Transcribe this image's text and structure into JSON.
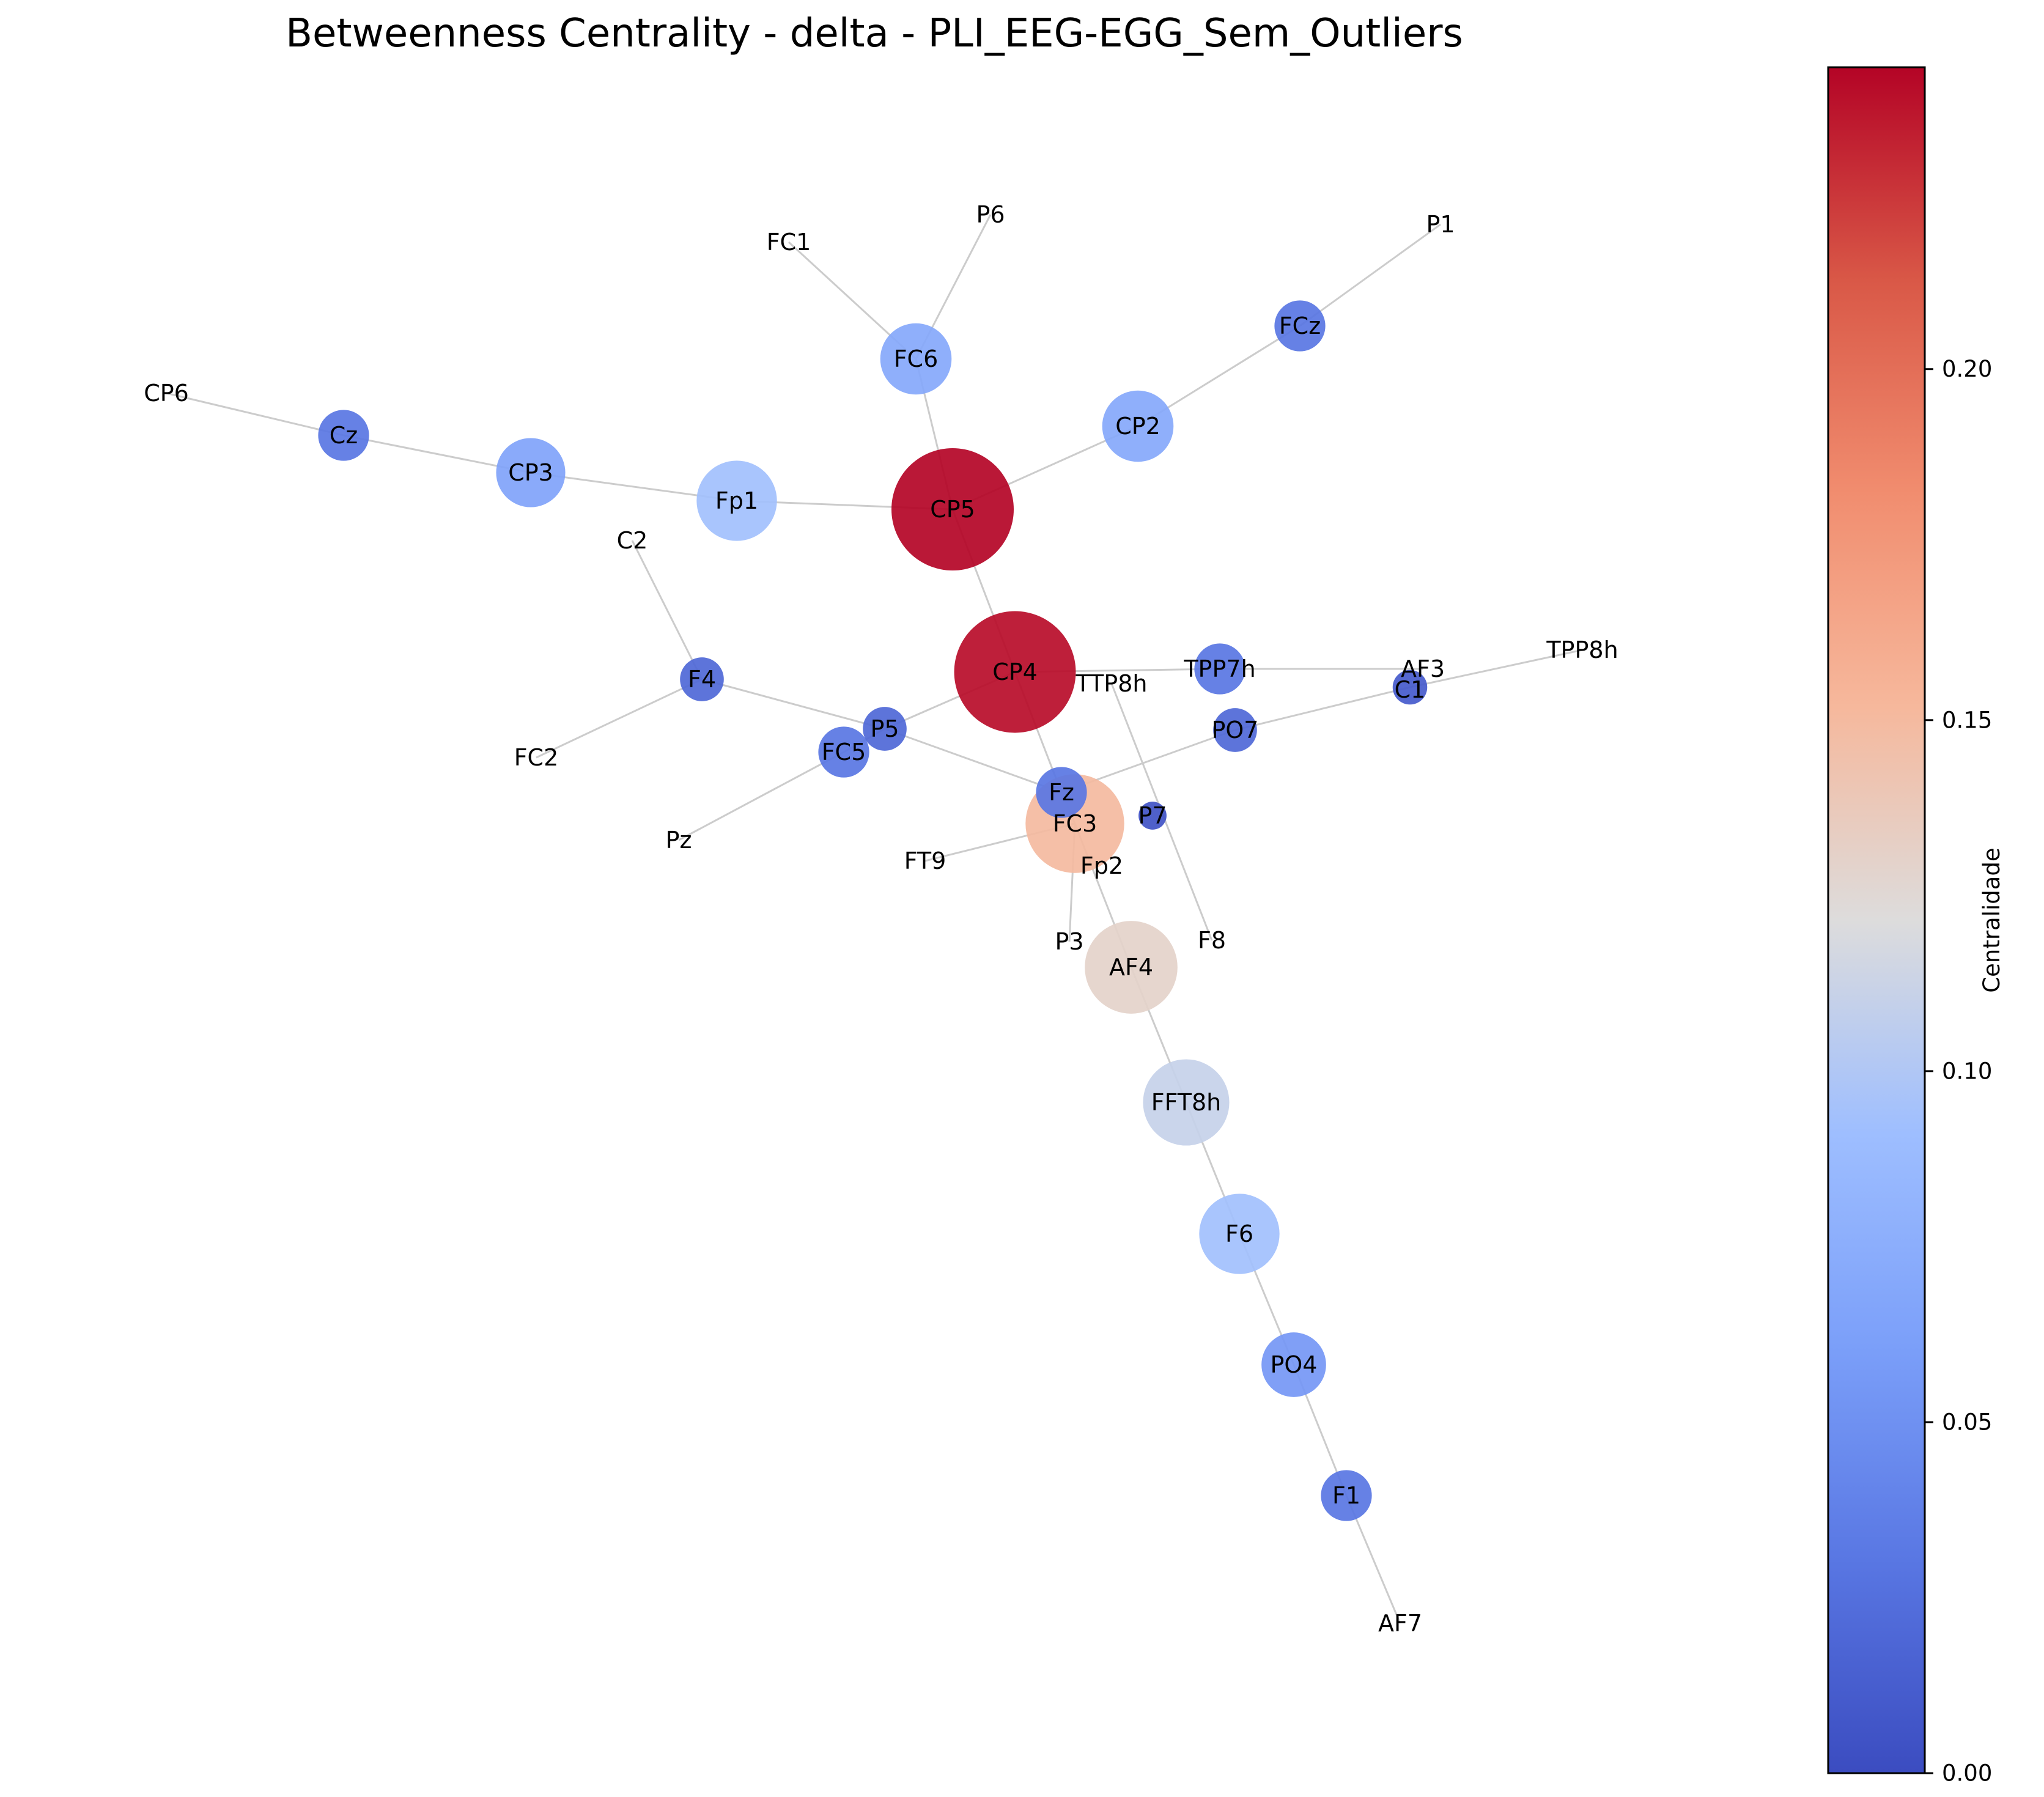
{
  "title": "Betweenness Centrality - delta - PLI_EEG-EGG_Sem_Outliers",
  "colorbar": {
    "label": "Centralidade",
    "ticks": [
      "0.00",
      "0.05",
      "0.10",
      "0.15",
      "0.20"
    ],
    "tick_values": [
      0.0,
      0.05,
      0.1,
      0.15,
      0.2
    ],
    "range": [
      0.0,
      0.243
    ],
    "colormap": "coolwarm",
    "edge_color": "#cccccc"
  },
  "nodes": [
    {
      "id": "CP5",
      "value": 0.243
    },
    {
      "id": "CP4",
      "value": 0.24
    },
    {
      "id": "FC3",
      "value": 0.15
    },
    {
      "id": "AF4",
      "value": 0.13
    },
    {
      "id": "FFT8h",
      "value": 0.11
    },
    {
      "id": "F6",
      "value": 0.093
    },
    {
      "id": "Fp1",
      "value": 0.093
    },
    {
      "id": "FC6",
      "value": 0.07
    },
    {
      "id": "CP2",
      "value": 0.07
    },
    {
      "id": "CP3",
      "value": 0.065
    },
    {
      "id": "PO4",
      "value": 0.055
    },
    {
      "id": "Cz",
      "value": 0.03
    },
    {
      "id": "FCz",
      "value": 0.03
    },
    {
      "id": "F1",
      "value": 0.03
    },
    {
      "id": "TPP7h",
      "value": 0.03
    },
    {
      "id": "Fz",
      "value": 0.03
    },
    {
      "id": "FC5",
      "value": 0.03
    },
    {
      "id": "P5",
      "value": 0.02
    },
    {
      "id": "F4",
      "value": 0.02
    },
    {
      "id": "PO7",
      "value": 0.02
    },
    {
      "id": "C1",
      "value": 0.01
    },
    {
      "id": "P7",
      "value": 0.005
    },
    {
      "id": "CP6",
      "value": 0.0
    },
    {
      "id": "FC1",
      "value": 0.0
    },
    {
      "id": "P6",
      "value": 0.0
    },
    {
      "id": "P1",
      "value": 0.0
    },
    {
      "id": "C2",
      "value": 0.0
    },
    {
      "id": "FC2",
      "value": 0.0
    },
    {
      "id": "Pz",
      "value": 0.0
    },
    {
      "id": "FT9",
      "value": 0.0
    },
    {
      "id": "Fp2",
      "value": 0.0
    },
    {
      "id": "P3",
      "value": 0.0
    },
    {
      "id": "F8",
      "value": 0.0
    },
    {
      "id": "TTP8h",
      "value": 0.0
    },
    {
      "id": "AF3",
      "value": 0.0
    },
    {
      "id": "TPP8h",
      "value": 0.0
    },
    {
      "id": "AF7",
      "value": 0.0
    }
  ],
  "edges": [
    [
      "CP6",
      "Cz"
    ],
    [
      "Cz",
      "CP3"
    ],
    [
      "CP3",
      "Fp1"
    ],
    [
      "Fp1",
      "CP5"
    ],
    [
      "FC1",
      "FC6"
    ],
    [
      "P6",
      "FC6"
    ],
    [
      "FC6",
      "CP5"
    ],
    [
      "P1",
      "FCz"
    ],
    [
      "FCz",
      "CP2"
    ],
    [
      "CP2",
      "CP5"
    ],
    [
      "CP5",
      "CP4"
    ],
    [
      "CP4",
      "TPP7h"
    ],
    [
      "TPP7h",
      "AF3"
    ],
    [
      "CP4",
      "P5"
    ],
    [
      "CP4",
      "Fz"
    ],
    [
      "C2",
      "F4"
    ],
    [
      "FC2",
      "F4"
    ],
    [
      "F4",
      "P5"
    ],
    [
      "P5",
      "Fz"
    ],
    [
      "Pz",
      "FC5"
    ],
    [
      "FC5",
      "P5"
    ],
    [
      "TTP8h",
      "F8"
    ],
    [
      "TPP8h",
      "C1"
    ],
    [
      "C1",
      "PO7"
    ],
    [
      "PO7",
      "Fz"
    ],
    [
      "Fz",
      "FC3"
    ],
    [
      "FC3",
      "FT9"
    ],
    [
      "FC3",
      "P3"
    ],
    [
      "FC3",
      "AF4"
    ],
    [
      "AF4",
      "FFT8h"
    ],
    [
      "FFT8h",
      "F6"
    ],
    [
      "F6",
      "PO4"
    ],
    [
      "PO4",
      "F1"
    ],
    [
      "F1",
      "AF7"
    ]
  ]
}
